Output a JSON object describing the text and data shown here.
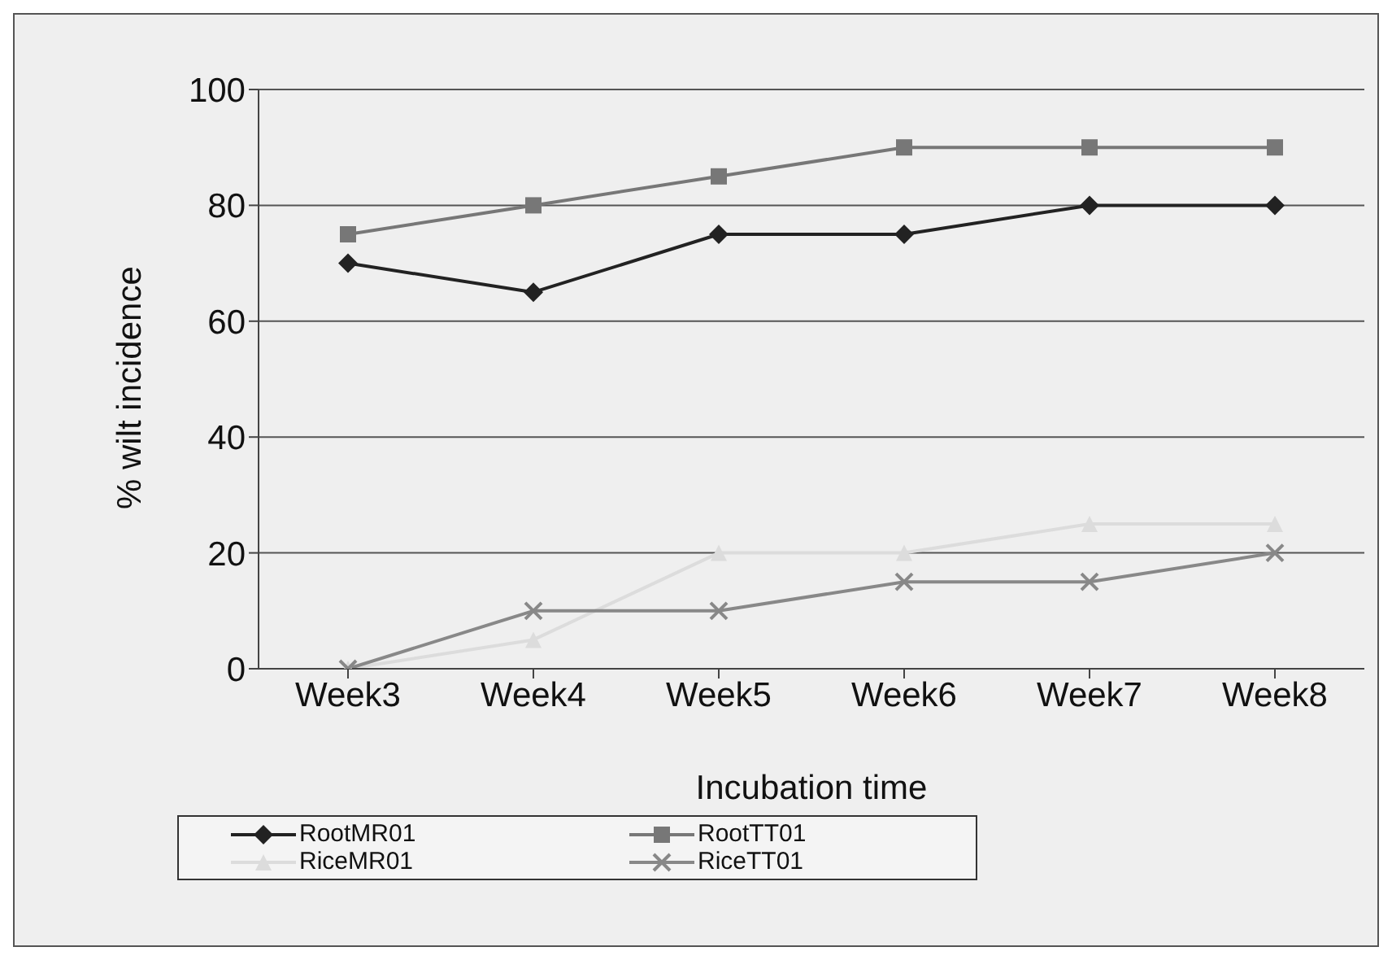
{
  "chart_data": {
    "type": "line",
    "xlabel": "Incubation time",
    "ylabel": "% wilt incidence",
    "categories": [
      "Week3",
      "Week4",
      "Week5",
      "Week6",
      "Week7",
      "Week8"
    ],
    "series": [
      {
        "name": "RootMR01",
        "color": "#222222",
        "marker": "diamond",
        "values": [
          70,
          65,
          75,
          75,
          80,
          80
        ]
      },
      {
        "name": "RootTT01",
        "color": "#777777",
        "marker": "square",
        "values": [
          75,
          80,
          85,
          90,
          90,
          90
        ]
      },
      {
        "name": "RiceMR01",
        "color": "#dcdcdc",
        "marker": "triangle",
        "values": [
          0,
          5,
          20,
          20,
          25,
          25
        ]
      },
      {
        "name": "RiceTT01",
        "color": "#888888",
        "marker": "cross",
        "values": [
          0,
          10,
          10,
          15,
          15,
          20
        ]
      }
    ],
    "ylim": [
      0,
      100
    ],
    "yticks": [
      0,
      20,
      40,
      60,
      80,
      100
    ],
    "grid": "y",
    "legend": "bottom"
  }
}
